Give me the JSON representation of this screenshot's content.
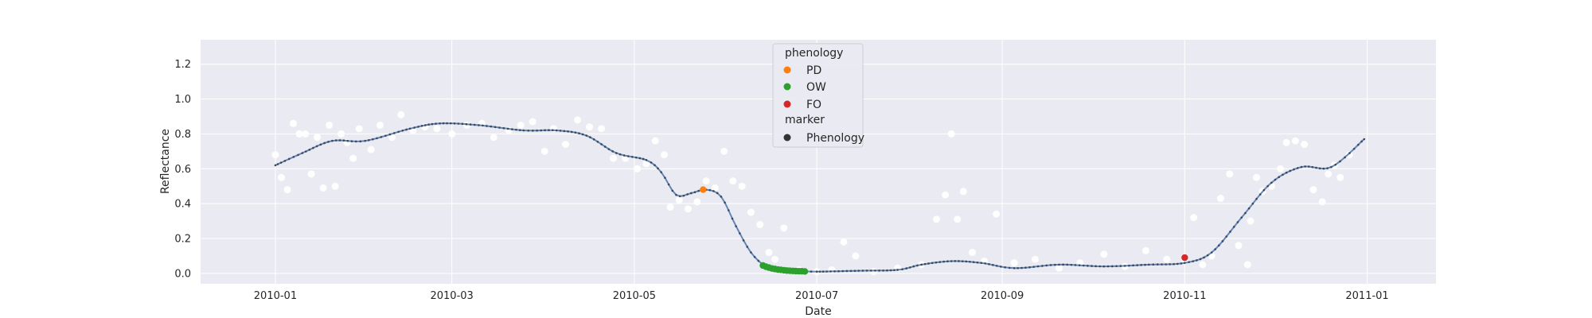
{
  "chart_data": {
    "type": "scatter",
    "title": "",
    "xlabel": "Date",
    "ylabel": "Reflectance",
    "xlim": [
      "2009-12-07",
      "2011-01-24"
    ],
    "ylim": [
      -0.06,
      1.34
    ],
    "grid": true,
    "legend_position": "top-center",
    "x_ticks": [
      "2010-01",
      "2010-03",
      "2010-05",
      "2010-07",
      "2010-09",
      "2010-11",
      "2011-01"
    ],
    "y_ticks": [
      "0.0",
      "0.2",
      "0.4",
      "0.6",
      "0.8",
      "1.0",
      "1.2"
    ],
    "legend": {
      "phenology_title": "phenology",
      "marker_title": "marker",
      "entries": [
        {
          "label": "PD",
          "color": "#ff7f0e"
        },
        {
          "label": "OW",
          "color": "#2ca02c"
        },
        {
          "label": "FO",
          "color": "#d62728"
        },
        {
          "label": "Phenology",
          "color": "#333333"
        }
      ]
    },
    "series": [
      {
        "color": "#ffffff",
        "kind": "scatter",
        "x": [
          "2010-01-01",
          "2010-01-03",
          "2010-01-05",
          "2010-01-07",
          "2010-01-09",
          "2010-01-11",
          "2010-01-13",
          "2010-01-15",
          "2010-01-17",
          "2010-01-19",
          "2010-01-21",
          "2010-01-23",
          "2010-01-25",
          "2010-01-27",
          "2010-01-29",
          "2010-02-02",
          "2010-02-05",
          "2010-02-09",
          "2010-02-12",
          "2010-02-16",
          "2010-02-20",
          "2010-02-24",
          "2010-03-01",
          "2010-03-06",
          "2010-03-11",
          "2010-03-15",
          "2010-03-20",
          "2010-03-24",
          "2010-03-28",
          "2010-04-01",
          "2010-04-04",
          "2010-04-08",
          "2010-04-12",
          "2010-04-16",
          "2010-04-20",
          "2010-04-24",
          "2010-04-28",
          "2010-05-02",
          "2010-05-05",
          "2010-05-08",
          "2010-05-11",
          "2010-05-13",
          "2010-05-16",
          "2010-05-19",
          "2010-05-22",
          "2010-05-25",
          "2010-05-28",
          "2010-05-31",
          "2010-06-03",
          "2010-06-06",
          "2010-06-09",
          "2010-06-12",
          "2010-06-15",
          "2010-06-17",
          "2010-06-20",
          "2010-06-25",
          "2010-07-01",
          "2010-07-06",
          "2010-07-10",
          "2010-07-14",
          "2010-07-20",
          "2010-07-28",
          "2010-08-05",
          "2010-08-10",
          "2010-08-13",
          "2010-08-15",
          "2010-08-17",
          "2010-08-19",
          "2010-08-22",
          "2010-08-26",
          "2010-08-30",
          "2010-09-05",
          "2010-09-12",
          "2010-09-20",
          "2010-09-27",
          "2010-10-05",
          "2010-10-12",
          "2010-10-19",
          "2010-10-26",
          "2010-11-01",
          "2010-11-04",
          "2010-11-07",
          "2010-11-10",
          "2010-11-13",
          "2010-11-16",
          "2010-11-19",
          "2010-11-22",
          "2010-11-23",
          "2010-11-25",
          "2010-11-27",
          "2010-11-30",
          "2010-12-03",
          "2010-12-05",
          "2010-12-08",
          "2010-12-11",
          "2010-12-14",
          "2010-12-17",
          "2010-12-19",
          "2010-12-21",
          "2010-12-23",
          "2010-12-26"
        ],
        "y": [
          0.68,
          0.55,
          0.48,
          0.86,
          0.8,
          0.8,
          0.57,
          0.78,
          0.49,
          0.85,
          0.5,
          0.8,
          0.75,
          0.66,
          0.83,
          0.71,
          0.85,
          0.78,
          0.91,
          0.82,
          0.84,
          0.83,
          0.8,
          0.85,
          0.86,
          0.78,
          0.82,
          0.85,
          0.87,
          0.7,
          0.83,
          0.74,
          0.88,
          0.84,
          0.83,
          0.66,
          0.66,
          0.6,
          0.63,
          0.76,
          0.68,
          0.38,
          0.42,
          0.37,
          0.41,
          0.53,
          0.49,
          0.7,
          0.53,
          0.5,
          0.35,
          0.28,
          0.12,
          0.08,
          0.26,
          0.02,
          0.01,
          0.02,
          0.18,
          0.1,
          0.01,
          0.03,
          0.05,
          0.31,
          0.45,
          0.8,
          0.31,
          0.47,
          0.12,
          0.07,
          0.34,
          0.06,
          0.08,
          0.03,
          0.06,
          0.11,
          0.04,
          0.13,
          0.08,
          0.08,
          0.32,
          0.05,
          0.1,
          0.43,
          0.57,
          0.16,
          0.05,
          0.3,
          0.55,
          0.47,
          0.5,
          0.6,
          0.75,
          0.76,
          0.74,
          0.48,
          0.41,
          0.57,
          0.62,
          0.55,
          0.68
        ]
      },
      {
        "color": "#4c72b0",
        "kind": "line",
        "x": [
          "2010-01-01",
          "2010-01-10",
          "2010-01-20",
          "2010-01-31",
          "2010-02-15",
          "2010-02-25",
          "2010-03-10",
          "2010-03-25",
          "2010-04-05",
          "2010-04-15",
          "2010-04-25",
          "2010-05-05",
          "2010-05-10",
          "2010-05-15",
          "2010-05-20",
          "2010-05-25",
          "2010-05-30",
          "2010-06-04",
          "2010-06-09",
          "2010-06-14",
          "2010-06-19",
          "2010-06-24",
          "2010-07-01",
          "2010-07-15",
          "2010-07-28",
          "2010-08-05",
          "2010-08-15",
          "2010-08-25",
          "2010-09-05",
          "2010-09-20",
          "2010-10-05",
          "2010-10-20",
          "2010-11-01",
          "2010-11-10",
          "2010-11-20",
          "2010-11-30",
          "2010-12-10",
          "2010-12-20",
          "2010-12-31"
        ],
        "y": [
          0.62,
          0.69,
          0.76,
          0.76,
          0.83,
          0.86,
          0.85,
          0.82,
          0.82,
          0.79,
          0.69,
          0.65,
          0.58,
          0.45,
          0.46,
          0.48,
          0.44,
          0.27,
          0.12,
          0.04,
          0.02,
          0.015,
          0.01,
          0.015,
          0.02,
          0.05,
          0.07,
          0.06,
          0.03,
          0.05,
          0.04,
          0.05,
          0.06,
          0.12,
          0.32,
          0.52,
          0.61,
          0.61,
          0.77
        ]
      },
      {
        "name": "PD",
        "color": "#ff7f0e",
        "kind": "scatter",
        "x": [
          "2010-05-24"
        ],
        "y": [
          0.48
        ]
      },
      {
        "name": "OW",
        "color": "#2ca02c",
        "kind": "scatter",
        "x": [
          "2010-06-13",
          "2010-06-14",
          "2010-06-15",
          "2010-06-16",
          "2010-06-17",
          "2010-06-18",
          "2010-06-19",
          "2010-06-20",
          "2010-06-21",
          "2010-06-22",
          "2010-06-23",
          "2010-06-24",
          "2010-06-25",
          "2010-06-26",
          "2010-06-27"
        ],
        "y": [
          0.045,
          0.038,
          0.033,
          0.028,
          0.025,
          0.022,
          0.02,
          0.018,
          0.016,
          0.015,
          0.014,
          0.013,
          0.012,
          0.012,
          0.011
        ]
      },
      {
        "name": "FO",
        "color": "#d62728",
        "kind": "scatter",
        "x": [
          "2010-11-01"
        ],
        "y": [
          0.09
        ]
      }
    ]
  }
}
